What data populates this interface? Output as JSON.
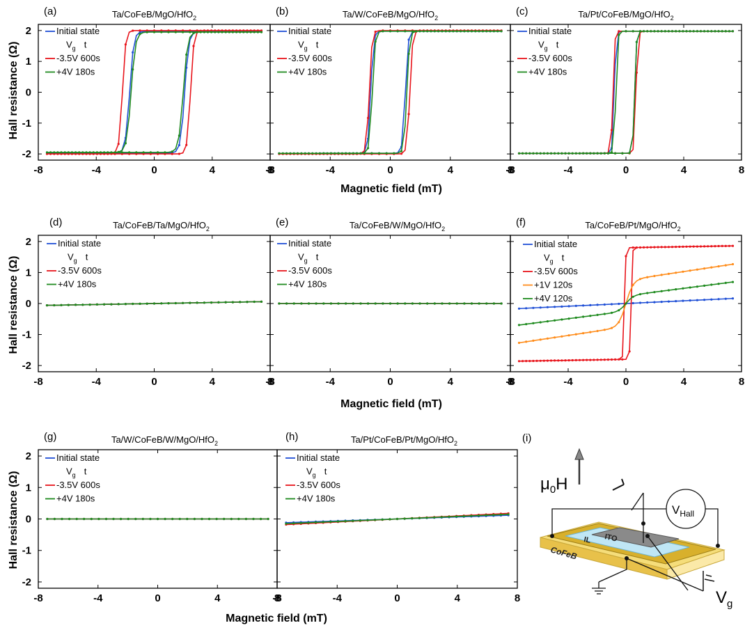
{
  "figure": {
    "ylabel": "Hall resistance (Ω)",
    "xlabel": "Magnetic field (mT)",
    "x_ticks": [
      "-8",
      "-4",
      "0",
      "4",
      "8"
    ],
    "y_ticks": [
      "2",
      "1",
      "0",
      "-1",
      "-2"
    ]
  },
  "colors": {
    "blue": "#1f4fd6",
    "red": "#e8141b",
    "green": "#1e8a1e",
    "orange": "#ff8c1a"
  },
  "legend_header": {
    "vg": "V",
    "vg_sub": "g",
    "t": "t"
  },
  "chart_data": [
    {
      "type": "line",
      "panel": "(a)",
      "title": "Ta/CoFeB/MgO/HfO",
      "title_sub": "2",
      "xlim": [
        -8,
        8
      ],
      "ylim": [
        -2.2,
        2.2
      ],
      "series": [
        {
          "name": "Initial state",
          "color": "blue",
          "kind": "loop",
          "hc": [
            -1.7,
            2.1
          ],
          "ms": 1.97,
          "w": 0.28
        },
        {
          "name": "-3.5V 600s",
          "color": "red",
          "kind": "loop",
          "hc": [
            -2.2,
            2.5
          ],
          "ms": 2.0,
          "w": 0.22
        },
        {
          "name": "+4V 180s",
          "color": "green",
          "kind": "loop",
          "hc": [
            -1.6,
            2.0
          ],
          "ms": 1.95,
          "w": 0.3
        }
      ]
    },
    {
      "type": "line",
      "panel": "(b)",
      "title": "Ta/W/CoFeB/MgO/HfO",
      "title_sub": "2",
      "xlim": [
        -8,
        8
      ],
      "ylim": [
        -2.2,
        2.2
      ],
      "series": [
        {
          "name": "Initial state",
          "color": "blue",
          "kind": "loop",
          "hc": [
            -1.3,
            1.0
          ],
          "ms": 1.98,
          "w": 0.18
        },
        {
          "name": "-3.5V 600s",
          "color": "red",
          "kind": "loop",
          "hc": [
            -1.4,
            1.3
          ],
          "ms": 2.0,
          "w": 0.18
        },
        {
          "name": "+4V 180s",
          "color": "green",
          "kind": "loop",
          "hc": [
            -1.2,
            1.1
          ],
          "ms": 1.98,
          "w": 0.18
        }
      ]
    },
    {
      "type": "line",
      "panel": "(c)",
      "title": "Ta/Pt/CoFeB/MgO/HfO",
      "title_sub": "2",
      "xlim": [
        -8,
        8
      ],
      "ylim": [
        -2.2,
        2.2
      ],
      "series": [
        {
          "name": "Initial state",
          "color": "blue",
          "kind": "loop",
          "hc": [
            -0.8,
            0.6
          ],
          "ms": 1.98,
          "w": 0.12
        },
        {
          "name": "-3.5V 600s",
          "color": "red",
          "kind": "loop",
          "hc": [
            -0.9,
            0.7
          ],
          "ms": 1.98,
          "w": 0.12
        },
        {
          "name": "+4V 180s",
          "color": "green",
          "kind": "loop",
          "hc": [
            -0.7,
            0.6
          ],
          "ms": 1.98,
          "w": 0.12
        }
      ]
    },
    {
      "type": "line",
      "panel": "(d)",
      "title": "Ta/CoFeB/Ta/MgO/HfO",
      "title_sub": "2",
      "xlim": [
        -8,
        8
      ],
      "ylim": [
        -2.2,
        2.2
      ],
      "series": [
        {
          "name": "Initial state",
          "color": "blue",
          "kind": "linear",
          "slope": 0.008
        },
        {
          "name": "-3.5V 600s",
          "color": "red",
          "kind": "linear",
          "slope": 0.008
        },
        {
          "name": "+4V 180s",
          "color": "green",
          "kind": "linear",
          "slope": 0.008
        }
      ]
    },
    {
      "type": "line",
      "panel": "(e)",
      "title": "Ta/CoFeB/W/MgO/HfO",
      "title_sub": "2",
      "xlim": [
        -8,
        8
      ],
      "ylim": [
        -2.2,
        2.2
      ],
      "series": [
        {
          "name": "Initial state",
          "color": "blue",
          "kind": "linear",
          "slope": 0.0
        },
        {
          "name": "-3.5V 600s",
          "color": "red",
          "kind": "linear",
          "slope": 0.0
        },
        {
          "name": "+4V 180s",
          "color": "green",
          "kind": "linear",
          "slope": 0.0
        }
      ]
    },
    {
      "type": "line",
      "panel": "(f)",
      "title": "Ta/CoFeB/Pt/MgO/HfO",
      "title_sub": "2",
      "xlim": [
        -8,
        8
      ],
      "ylim": [
        -2.2,
        2.2
      ],
      "series": [
        {
          "name": "Initial state",
          "color": "blue",
          "kind": "linear",
          "slope": 0.022
        },
        {
          "name": "-3.5V 600s",
          "color": "red",
          "kind": "loop",
          "hc": [
            -0.1,
            0.35
          ],
          "ms": 1.8,
          "w": 0.08,
          "slope": 0.008
        },
        {
          "name": "+1V 120s",
          "color": "orange",
          "kind": "soft",
          "a": 0.75,
          "s": 0.5,
          "slope": 0.07
        },
        {
          "name": "+4V 120s",
          "color": "green",
          "kind": "soft",
          "a": 0.25,
          "s": 0.5,
          "slope": 0.06
        }
      ]
    },
    {
      "type": "line",
      "panel": "(g)",
      "title": "Ta/W/CoFeB/W/MgO/HfO",
      "title_sub": "2",
      "xlim": [
        -8,
        8
      ],
      "ylim": [
        -2.2,
        2.2
      ],
      "series": [
        {
          "name": "Initial state",
          "color": "blue",
          "kind": "linear",
          "slope": 0.0
        },
        {
          "name": "-3.5V 600s",
          "color": "red",
          "kind": "linear",
          "slope": 0.0
        },
        {
          "name": "+4V 180s",
          "color": "green",
          "kind": "linear",
          "slope": 0.0
        }
      ]
    },
    {
      "type": "line",
      "panel": "(h)",
      "title": "Ta/Pt/CoFeB/Pt/MgO/HfO",
      "title_sub": "2",
      "xlim": [
        -8,
        8
      ],
      "ylim": [
        -2.2,
        2.2
      ],
      "series": [
        {
          "name": "Initial state",
          "color": "blue",
          "kind": "linear",
          "slope": 0.016
        },
        {
          "name": "-3.5V 600s",
          "color": "red",
          "kind": "linear",
          "slope": 0.024
        },
        {
          "name": "+4V 180s",
          "color": "green",
          "kind": "linear",
          "slope": 0.02
        }
      ]
    }
  ],
  "schematic": {
    "panel": "(i)",
    "field": "μ",
    "field_sub": "0",
    "field_tail": "H",
    "vhall": "V",
    "vhall_sub": "Hall",
    "vg": "V",
    "vg_sub": "g",
    "ito": "ITO",
    "il": "IL",
    "cofeb": "CoFeB"
  }
}
